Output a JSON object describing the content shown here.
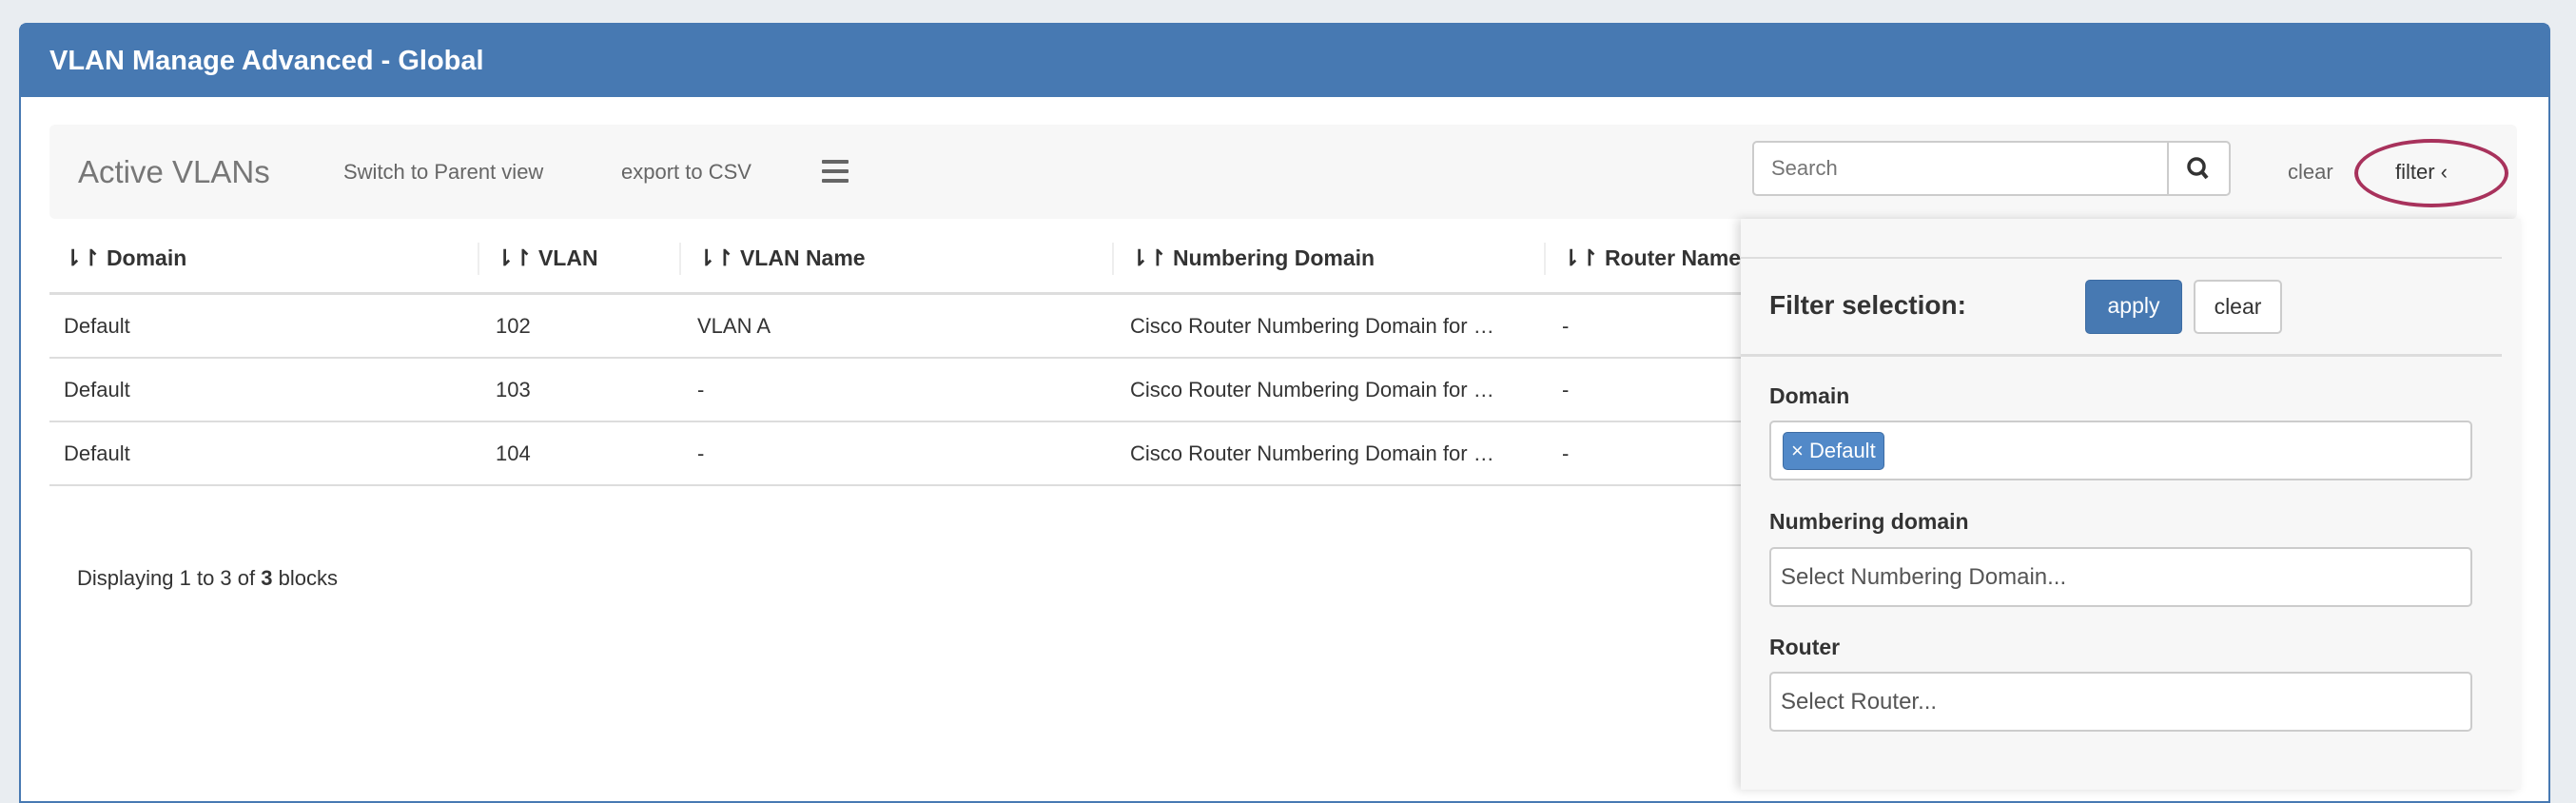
{
  "window": {
    "title": "VLAN Manage Advanced - Global"
  },
  "toolbar": {
    "title": "Active VLANs",
    "switch_view": "Switch to Parent view",
    "export": "export to CSV",
    "menu_icon": "hamburger-icon",
    "search_placeholder": "Search",
    "search_icon": "magnifier-icon",
    "clear": "clear",
    "filter": "filter ‹"
  },
  "table": {
    "columns": [
      "Domain",
      "VLAN",
      "VLAN Name",
      "Numbering Domain",
      "Router Name"
    ],
    "rows": [
      [
        "Default",
        "102",
        "VLAN A",
        "Cisco Router Numbering Domain for …",
        "-"
      ],
      [
        "Default",
        "103",
        "-",
        "Cisco Router Numbering Domain for …",
        "-"
      ],
      [
        "Default",
        "104",
        "-",
        "Cisco Router Numbering Domain for …",
        "-"
      ]
    ],
    "footer_pre": "Displaying 1 to 3 of ",
    "footer_count": "3",
    "footer_post": " blocks"
  },
  "filter": {
    "title": "Filter selection:",
    "apply": "apply",
    "clear": "clear",
    "domain_label": "Domain",
    "domain_tag": "Default",
    "numbering_label": "Numbering domain",
    "numbering_placeholder": "Select Numbering Domain...",
    "router_label": "Router",
    "router_placeholder": "Select Router..."
  },
  "colors": {
    "brand": "#4779b2",
    "highlight": "#a8325c"
  }
}
